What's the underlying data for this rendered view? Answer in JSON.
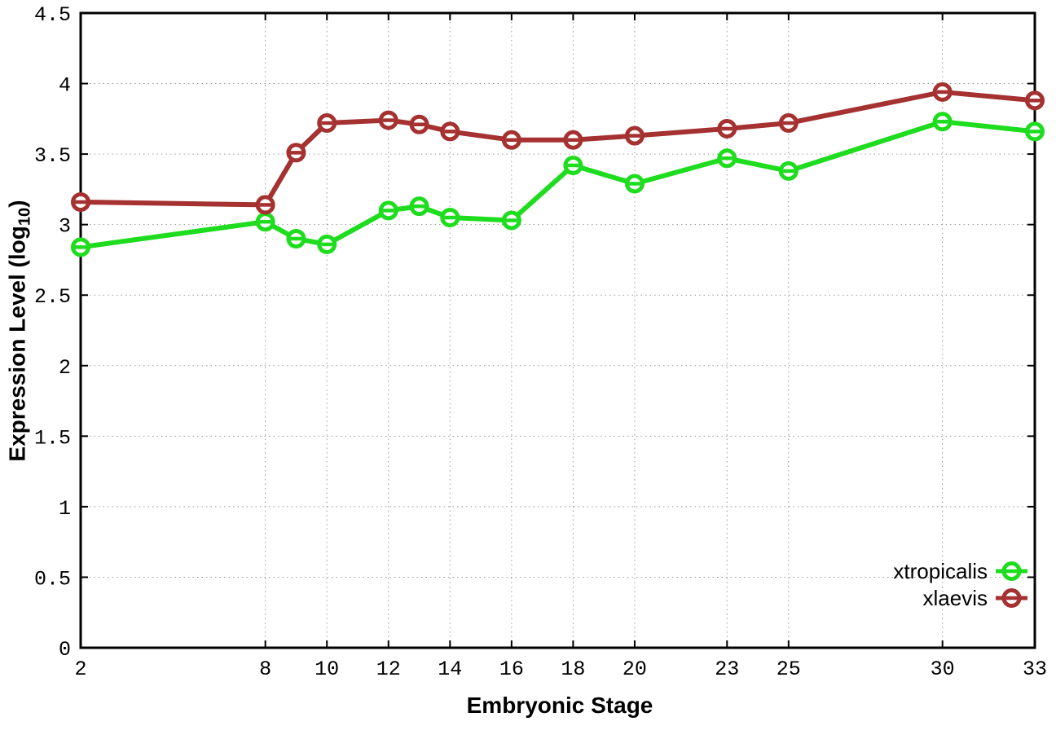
{
  "chart_data": {
    "type": "line",
    "title": "",
    "xlabel": "Embryonic Stage",
    "ylabel": "Expression Level (log10)",
    "ylabel_parts": {
      "main": "Expression Level (log",
      "sub": "10",
      "end": ")"
    },
    "xlim": [
      2,
      33
    ],
    "ylim": [
      0,
      4.5
    ],
    "x_ticks": [
      2,
      8,
      10,
      12,
      14,
      16,
      18,
      20,
      23,
      25,
      30,
      33
    ],
    "y_ticks": [
      0,
      0.5,
      1,
      1.5,
      2,
      2.5,
      3,
      3.5,
      4,
      4.5
    ],
    "grid": true,
    "legend_position": "bottom-right",
    "background_color": "#ffffff",
    "axis_color": "#000000",
    "grid_color": "#9a9a9a",
    "x": [
      2,
      8,
      9,
      10,
      12,
      13,
      14,
      16,
      18,
      20,
      23,
      25,
      30,
      33
    ],
    "series": [
      {
        "name": "xtropicalis",
        "color": "#1edc1e",
        "values": [
          2.84,
          3.02,
          2.9,
          2.86,
          3.1,
          3.13,
          3.05,
          3.03,
          3.42,
          3.29,
          3.47,
          3.38,
          3.73,
          3.66
        ]
      },
      {
        "name": "xlaevis",
        "color": "#a53131",
        "values": [
          3.16,
          3.14,
          3.51,
          3.72,
          3.74,
          3.71,
          3.66,
          3.6,
          3.6,
          3.63,
          3.68,
          3.72,
          3.94,
          3.88
        ]
      }
    ]
  }
}
